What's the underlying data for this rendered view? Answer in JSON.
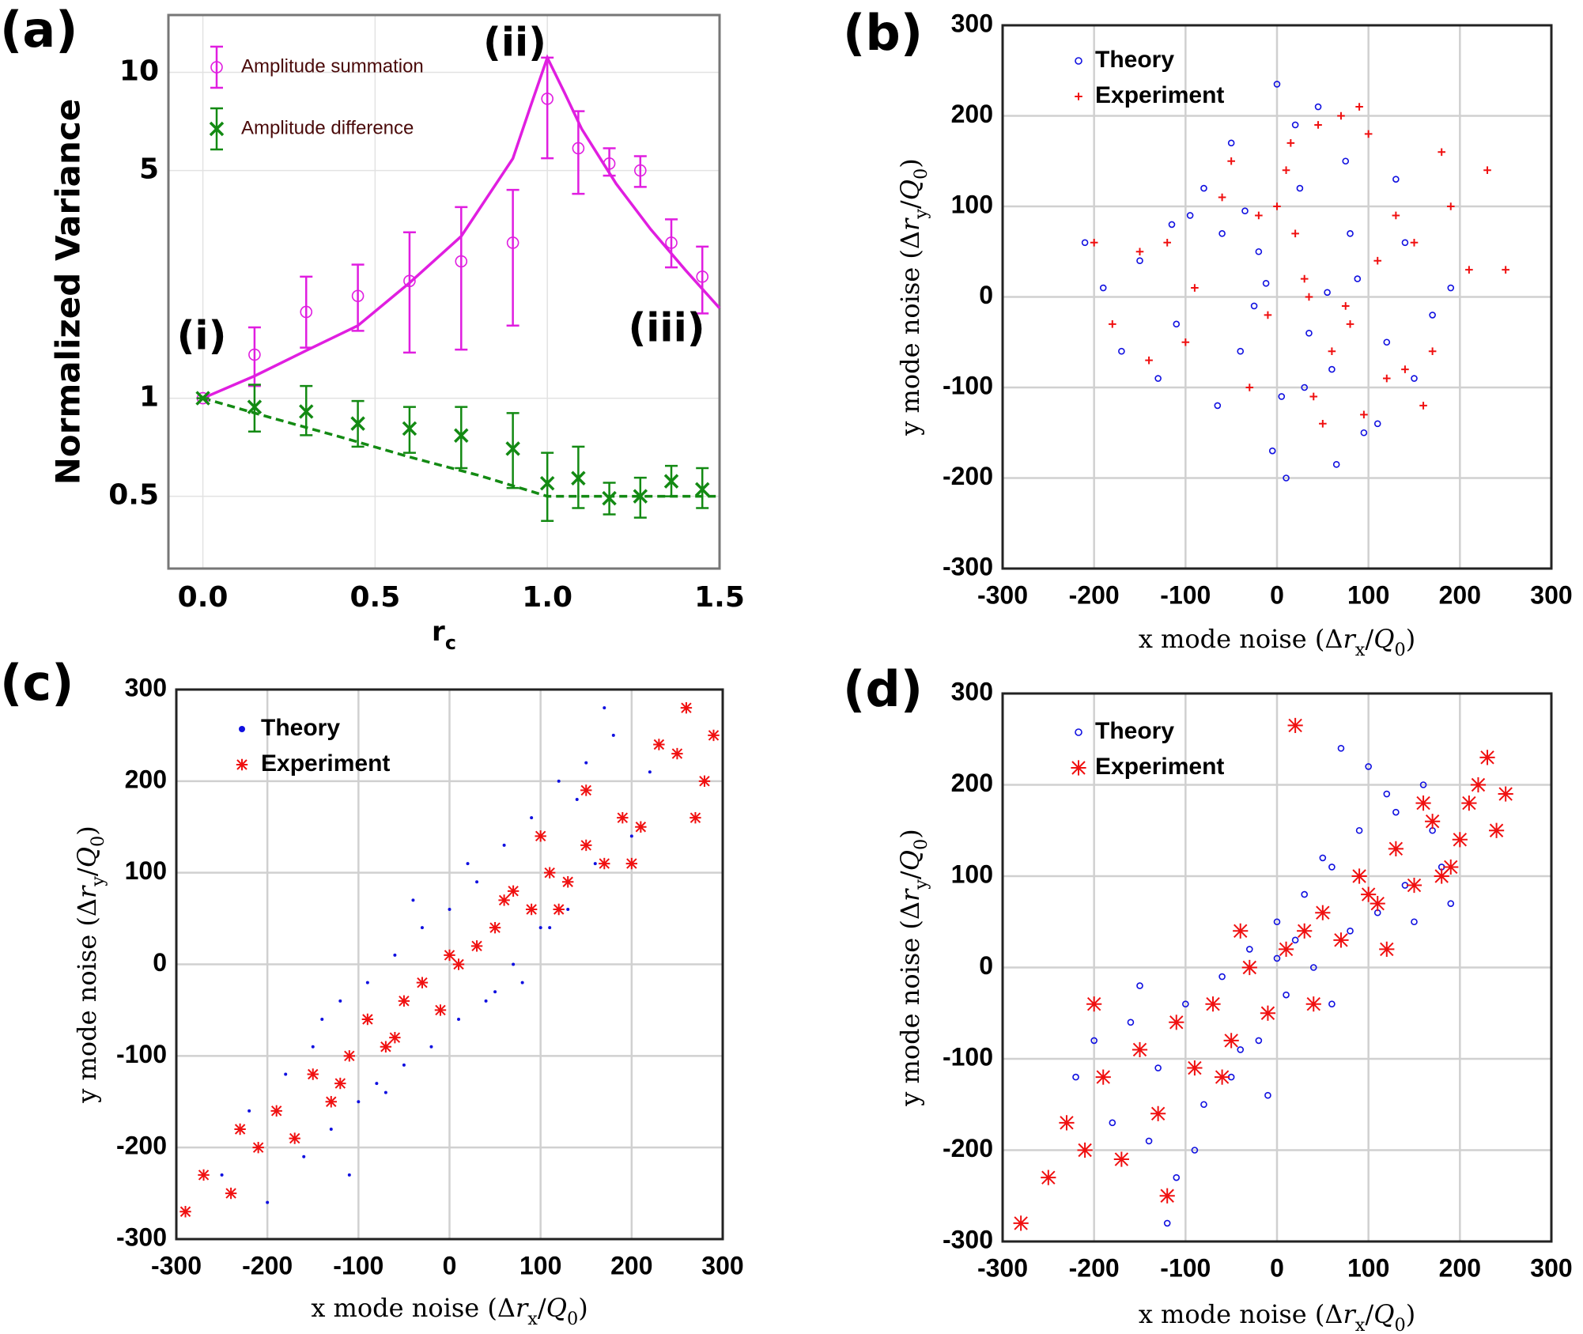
{
  "chart_data": [
    {
      "type": "errorbar",
      "panel_label": "(a)",
      "ylabel": "Normalized Variance",
      "xlabel": [
        {
          "text": "r",
          "style": "normal"
        },
        {
          "text": "c",
          "style": "sub"
        }
      ],
      "xlim": [
        -0.1,
        1.5
      ],
      "ylim": [
        0.3,
        15
      ],
      "yscale": "log",
      "grid": true,
      "legend": "upper left",
      "xticks": [
        {
          "value": 0,
          "label": "0.0"
        },
        0.5,
        {
          "value": 1,
          "label": "1.0"
        },
        1.5
      ],
      "yticks": [
        0.5,
        1,
        5,
        10
      ],
      "annotations": [
        "(i)",
        "(ii)",
        "(iii)"
      ],
      "series": [
        {
          "name": "Amplitude summation",
          "color": "#e01ee0",
          "marker": "o",
          "x": [
            0,
            0.15,
            0.3,
            0.45,
            0.6,
            0.75,
            0.9,
            1.0,
            1.09,
            1.18,
            1.27,
            1.36,
            1.45
          ],
          "values": [
            1.0,
            1.36,
            1.84,
            2.06,
            2.29,
            2.63,
            3.0,
            8.3,
            5.85,
            5.25,
            5.0,
            3.0,
            2.36
          ],
          "lower": [
            1.0,
            1.09,
            1.43,
            1.61,
            1.38,
            1.41,
            1.67,
            5.45,
            4.24,
            4.82,
            4.45,
            2.52,
            1.82
          ],
          "upper": [
            1.0,
            1.65,
            2.36,
            2.57,
            3.23,
            3.86,
            4.36,
            11.1,
            7.6,
            5.85,
            5.53,
            3.54,
            2.92
          ]
        },
        {
          "name": "Amplitude difference",
          "color": "#138a13",
          "marker": "x",
          "x": [
            0,
            0.15,
            0.3,
            0.45,
            0.6,
            0.75,
            0.9,
            1.0,
            1.09,
            1.18,
            1.27,
            1.36,
            1.45
          ],
          "values": [
            1.0,
            0.94,
            0.91,
            0.836,
            0.807,
            0.768,
            0.7,
            0.548,
            0.568,
            0.493,
            0.5,
            0.556,
            0.525
          ],
          "lower": [
            1.0,
            0.79,
            0.77,
            0.71,
            0.68,
            0.61,
            0.53,
            0.42,
            0.46,
            0.44,
            0.43,
            0.5,
            0.46
          ],
          "upper": [
            1.0,
            1.1,
            1.09,
            0.98,
            0.94,
            0.94,
            0.9,
            0.68,
            0.71,
            0.55,
            0.57,
            0.62,
            0.61
          ]
        }
      ],
      "lines": [
        {
          "color": "#e01ee0",
          "style": "solid",
          "x": [
            0,
            0.15,
            0.3,
            0.45,
            0.6,
            0.75,
            0.9,
            0.95,
            1.0,
            1.05,
            1.1,
            1.2,
            1.3,
            1.4,
            1.5
          ],
          "values": [
            1.0,
            1.17,
            1.4,
            1.67,
            2.26,
            3.14,
            5.44,
            7.8,
            11.1,
            8.66,
            6.7,
            4.55,
            3.3,
            2.48,
            1.89
          ]
        },
        {
          "color": "#138a13",
          "style": "dashed",
          "x": [
            0,
            0.2,
            0.4,
            0.6,
            0.8,
            1.0,
            1.5
          ],
          "values": [
            1.0,
            0.87,
            0.76,
            0.66,
            0.58,
            0.5,
            0.5
          ]
        }
      ]
    },
    {
      "type": "scatter",
      "panel_label": "(b)",
      "xlabel": [
        {
          "text": "x mode noise (Δ",
          "style": "normal"
        },
        {
          "text": "r",
          "style": "italic"
        },
        {
          "text": "x",
          "style": "sub"
        },
        {
          "text": "/",
          "style": "normal"
        },
        {
          "text": "Q",
          "style": "italic"
        },
        {
          "text": "0",
          "style": "sub"
        },
        {
          "text": ")",
          "style": "normal"
        }
      ],
      "ylabel": [
        {
          "text": "y mode noise (Δ",
          "style": "normal"
        },
        {
          "text": "r",
          "style": "italic"
        },
        {
          "text": "y",
          "style": "sub"
        },
        {
          "text": "/",
          "style": "normal"
        },
        {
          "text": "Q",
          "style": "italic"
        },
        {
          "text": "0",
          "style": "sub"
        },
        {
          "text": ")",
          "style": "normal"
        }
      ],
      "xlim": [
        -300,
        300
      ],
      "ylim": [
        -300,
        300
      ],
      "grid": true,
      "legend": "upper left",
      "xticks": [
        -300,
        -200,
        -100,
        0,
        100,
        200,
        300
      ],
      "yticks": [
        -300,
        -200,
        -100,
        0,
        100,
        200,
        300
      ],
      "series": [
        {
          "name": "Theory",
          "color": "#1010e0",
          "marker": "o",
          "x": [
            -12,
            35,
            -60,
            88,
            5,
            -110,
            140,
            -35,
            60,
            -80,
            20,
            110,
            -150,
            75,
            -5,
            -40,
            170,
            -190,
            45,
            95,
            -95,
            130,
            -20,
            10,
            -130,
            55,
            -65,
            150,
            -210,
            25,
            80,
            -25,
            0,
            120,
            -170,
            65,
            -50,
            30,
            190,
            -115
          ],
          "values": [
            15,
            -40,
            70,
            20,
            -110,
            -30,
            60,
            95,
            -80,
            120,
            190,
            -140,
            40,
            150,
            -170,
            -60,
            -20,
            10,
            210,
            -150,
            90,
            130,
            50,
            -200,
            -90,
            5,
            -120,
            -90,
            60,
            120,
            70,
            -10,
            235,
            -50,
            -60,
            -185,
            170,
            -100,
            10,
            80
          ]
        },
        {
          "name": "Experiment",
          "color": "#f01010",
          "marker": "+",
          "x": [
            30,
            80,
            -20,
            150,
            60,
            -90,
            190,
            10,
            120,
            -50,
            70,
            160,
            -120,
            100,
            40,
            -10,
            210,
            -150,
            90,
            140,
            -60,
            180,
            20,
            50,
            -100,
            110,
            -30,
            230,
            -180,
            0,
            130,
            75,
            45,
            170,
            -140,
            95,
            15,
            250,
            -200,
            35
          ],
          "values": [
            20,
            -30,
            90,
            60,
            -60,
            10,
            100,
            140,
            -90,
            150,
            200,
            -120,
            60,
            180,
            -110,
            -20,
            30,
            50,
            210,
            -80,
            110,
            160,
            70,
            -140,
            -50,
            40,
            -100,
            140,
            -30,
            100,
            90,
            -10,
            190,
            -60,
            -70,
            -130,
            170,
            30,
            60,
            0
          ]
        }
      ]
    },
    {
      "type": "scatter",
      "panel_label": "(c)",
      "xlabel": [
        {
          "text": "x mode noise (Δ",
          "style": "normal"
        },
        {
          "text": "r",
          "style": "italic"
        },
        {
          "text": "x",
          "style": "sub"
        },
        {
          "text": "/",
          "style": "normal"
        },
        {
          "text": "Q",
          "style": "italic"
        },
        {
          "text": "0",
          "style": "sub"
        },
        {
          "text": ")",
          "style": "normal"
        }
      ],
      "ylabel": [
        {
          "text": "y mode noise (Δ",
          "style": "normal"
        },
        {
          "text": "r",
          "style": "italic"
        },
        {
          "text": "y",
          "style": "sub"
        },
        {
          "text": "/",
          "style": "normal"
        },
        {
          "text": "Q",
          "style": "italic"
        },
        {
          "text": "0",
          "style": "sub"
        },
        {
          "text": ")",
          "style": "normal"
        }
      ],
      "xlim": [
        -300,
        300
      ],
      "ylim": [
        -300,
        300
      ],
      "grid": true,
      "legend": "upper left",
      "xticks": [
        -300,
        -200,
        -100,
        0,
        100,
        200,
        300
      ],
      "yticks": [
        -300,
        -200,
        -100,
        0,
        100,
        200,
        300
      ],
      "series": [
        {
          "name": "Theory",
          "color": "#1010e0",
          "marker": ".",
          "x": [
            -250,
            -220,
            -200,
            -180,
            -160,
            -150,
            -130,
            -120,
            -100,
            -90,
            -80,
            -60,
            -50,
            -30,
            -20,
            0,
            10,
            30,
            40,
            60,
            70,
            90,
            100,
            120,
            130,
            150,
            160,
            180,
            200,
            220,
            -140,
            -70,
            20,
            80,
            140,
            -110,
            -40,
            50,
            110,
            170
          ],
          "values": [
            -230,
            -160,
            -260,
            -120,
            -210,
            -90,
            -180,
            -40,
            -150,
            -20,
            -130,
            10,
            -110,
            40,
            -90,
            60,
            -60,
            90,
            -40,
            130,
            0,
            160,
            40,
            200,
            60,
            220,
            110,
            250,
            140,
            210,
            -60,
            -140,
            110,
            -20,
            180,
            -230,
            70,
            -30,
            40,
            280
          ]
        },
        {
          "name": "Experiment",
          "color": "#f01010",
          "marker": "*",
          "x": [
            -290,
            -270,
            -240,
            -210,
            -190,
            -170,
            -150,
            -130,
            -110,
            -90,
            -70,
            -50,
            -30,
            -10,
            10,
            30,
            50,
            70,
            90,
            110,
            130,
            150,
            170,
            190,
            210,
            230,
            250,
            270,
            290,
            -60,
            0,
            60,
            120,
            -120,
            200,
            260,
            -230,
            150,
            280,
            100
          ],
          "values": [
            -270,
            -230,
            -250,
            -200,
            -160,
            -190,
            -120,
            -150,
            -100,
            -60,
            -90,
            -40,
            -20,
            -50,
            0,
            20,
            40,
            80,
            60,
            100,
            90,
            130,
            110,
            160,
            150,
            240,
            230,
            160,
            250,
            -80,
            10,
            70,
            60,
            -130,
            110,
            280,
            -180,
            190,
            200,
            140
          ]
        }
      ]
    },
    {
      "type": "scatter",
      "panel_label": "(d)",
      "xlabel": [
        {
          "text": "x mode noise (Δ",
          "style": "normal"
        },
        {
          "text": "r",
          "style": "italic"
        },
        {
          "text": "x",
          "style": "sub"
        },
        {
          "text": "/",
          "style": "normal"
        },
        {
          "text": "Q",
          "style": "italic"
        },
        {
          "text": "0",
          "style": "sub"
        },
        {
          "text": ")",
          "style": "normal"
        }
      ],
      "ylabel": [
        {
          "text": "y mode noise (Δ",
          "style": "normal"
        },
        {
          "text": "r",
          "style": "italic"
        },
        {
          "text": "y",
          "style": "sub"
        },
        {
          "text": "/",
          "style": "normal"
        },
        {
          "text": "Q",
          "style": "italic"
        },
        {
          "text": "0",
          "style": "sub"
        },
        {
          "text": ")",
          "style": "normal"
        }
      ],
      "xlim": [
        -300,
        300
      ],
      "ylim": [
        -300,
        300
      ],
      "grid": true,
      "legend": "upper left",
      "xticks": [
        -300,
        -200,
        -100,
        0,
        100,
        200,
        300
      ],
      "yticks": [
        -300,
        -200,
        -100,
        0,
        100,
        200,
        300
      ],
      "series": [
        {
          "name": "Theory",
          "color": "#1010e0",
          "marker": "o",
          "x": [
            -220,
            -200,
            -180,
            -160,
            -140,
            -130,
            -110,
            -100,
            -80,
            -60,
            -50,
            -30,
            -20,
            0,
            10,
            30,
            40,
            60,
            80,
            90,
            110,
            120,
            140,
            160,
            180,
            190,
            -90,
            -40,
            20,
            70,
            130,
            -150,
            -10,
            50,
            100,
            150,
            -120,
            0,
            60,
            170
          ],
          "values": [
            -120,
            -80,
            -170,
            -60,
            -190,
            -110,
            -230,
            -40,
            -150,
            -10,
            -120,
            20,
            -80,
            50,
            -30,
            80,
            0,
            110,
            40,
            150,
            60,
            190,
            90,
            200,
            110,
            70,
            -200,
            -90,
            30,
            240,
            170,
            -20,
            -140,
            120,
            220,
            50,
            -280,
            10,
            -40,
            150
          ]
        },
        {
          "name": "Experiment",
          "color": "#f01010",
          "marker": "*",
          "x": [
            -280,
            -250,
            -230,
            -210,
            -190,
            -170,
            -150,
            -130,
            -110,
            -90,
            -70,
            -50,
            -30,
            -10,
            10,
            30,
            50,
            70,
            90,
            110,
            130,
            150,
            170,
            190,
            210,
            230,
            250,
            -200,
            -120,
            -40,
            40,
            120,
            200,
            220,
            240,
            -60,
            20,
            100,
            160,
            180
          ],
          "values": [
            -280,
            -230,
            -170,
            -200,
            -120,
            -210,
            -90,
            -160,
            -60,
            -110,
            -40,
            -80,
            0,
            -50,
            20,
            40,
            60,
            30,
            100,
            70,
            130,
            90,
            160,
            110,
            180,
            230,
            190,
            -40,
            -250,
            40,
            -40,
            20,
            140,
            200,
            150,
            -120,
            265,
            80,
            180,
            100
          ]
        }
      ]
    }
  ]
}
